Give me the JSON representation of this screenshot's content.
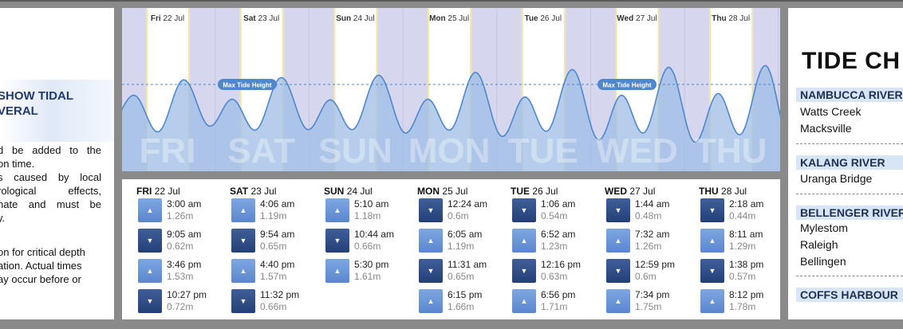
{
  "left_panel": {
    "heading_lines": [
      "SHOW TIDAL",
      "VERAL"
    ],
    "notes": [
      {
        "lines": [
          "d be added to the",
          "on time."
        ],
        "justify": true
      },
      {
        "lines": [
          "s caused by local",
          "rological effects,",
          "nate and must be",
          "y."
        ],
        "justify": true
      },
      {
        "lines": [
          "on for critical depth",
          "ation. Actual times",
          "ay occur before or"
        ],
        "justify": false
      }
    ]
  },
  "chart": {
    "max_tide_label": "Max Tide Height",
    "days": [
      {
        "abbr": "Fri",
        "date": "22 Jul",
        "big": "FRI"
      },
      {
        "abbr": "Sat",
        "date": "23 Jul",
        "big": "SAT"
      },
      {
        "abbr": "Sun",
        "date": "24 Jul",
        "big": "SUN"
      },
      {
        "abbr": "Mon",
        "date": "25 Jul",
        "big": "MON"
      },
      {
        "abbr": "Tue",
        "date": "26 Jul",
        "big": "TUE"
      },
      {
        "abbr": "Wed",
        "date": "27 Jul",
        "big": "WED"
      },
      {
        "abbr": "Thu",
        "date": "28 Jul",
        "big": "THU"
      }
    ]
  },
  "colors": {
    "high_tide": "#6a95d8",
    "low_tide": "#2f4c86",
    "day_band": "#ffffff",
    "night_band": "#d6d7ef",
    "wave_fill": "#9dbde6",
    "wave_line": "#4f87cf",
    "heading": "#223a70",
    "river_band": "#d8e5f6"
  },
  "table": {
    "days": [
      {
        "label": "FRI",
        "date": "22 Jul",
        "tides": [
          {
            "type": "high",
            "icon": "up-arrow-icon",
            "time": "3:00 am",
            "height": "1.26m"
          },
          {
            "type": "low",
            "icon": "down-arrow-icon",
            "time": "9:05 am",
            "height": "0.62m"
          },
          {
            "type": "high",
            "icon": "up-arrow-icon",
            "time": "3:46 pm",
            "height": "1.53m"
          },
          {
            "type": "low",
            "icon": "down-arrow-icon",
            "time": "10:27 pm",
            "height": "0.72m"
          }
        ]
      },
      {
        "label": "SAT",
        "date": "23 Jul",
        "tides": [
          {
            "type": "high",
            "icon": "up-arrow-icon",
            "time": "4:06 am",
            "height": "1.19m"
          },
          {
            "type": "low",
            "icon": "down-arrow-icon",
            "time": "9:54 am",
            "height": "0.65m"
          },
          {
            "type": "high",
            "icon": "up-arrow-icon",
            "time": "4:40 pm",
            "height": "1.57m"
          },
          {
            "type": "low",
            "icon": "down-arrow-icon",
            "time": "11:32 pm",
            "height": "0.66m"
          }
        ]
      },
      {
        "label": "SUN",
        "date": "24 Jul",
        "tides": [
          {
            "type": "high",
            "icon": "up-arrow-icon",
            "time": "5:10 am",
            "height": "1.18m"
          },
          {
            "type": "low",
            "icon": "down-arrow-icon",
            "time": "10:44 am",
            "height": "0.66m"
          },
          {
            "type": "high",
            "icon": "up-arrow-icon",
            "time": "5:30 pm",
            "height": "1.61m"
          }
        ]
      },
      {
        "label": "MON",
        "date": "25 Jul",
        "tides": [
          {
            "type": "low",
            "icon": "down-arrow-icon",
            "time": "12:24 am",
            "height": "0.6m"
          },
          {
            "type": "high",
            "icon": "up-arrow-icon",
            "time": "6:05 am",
            "height": "1.19m"
          },
          {
            "type": "low",
            "icon": "down-arrow-icon",
            "time": "11:31 am",
            "height": "0.65m"
          },
          {
            "type": "high",
            "icon": "up-arrow-icon",
            "time": "6:15 pm",
            "height": "1.66m"
          }
        ]
      },
      {
        "label": "TUE",
        "date": "26 Jul",
        "tides": [
          {
            "type": "low",
            "icon": "down-arrow-icon",
            "time": "1:06 am",
            "height": "0.54m"
          },
          {
            "type": "high",
            "icon": "up-arrow-icon",
            "time": "6:52 am",
            "height": "1.23m"
          },
          {
            "type": "low",
            "icon": "down-arrow-icon",
            "time": "12:16 pm",
            "height": "0.63m"
          },
          {
            "type": "high",
            "icon": "up-arrow-icon",
            "time": "6:56 pm",
            "height": "1.71m"
          }
        ]
      },
      {
        "label": "WED",
        "date": "27 Jul",
        "tides": [
          {
            "type": "low",
            "icon": "down-arrow-icon",
            "time": "1:44 am",
            "height": "0.48m"
          },
          {
            "type": "high",
            "icon": "up-arrow-icon",
            "time": "7:32 am",
            "height": "1.26m"
          },
          {
            "type": "low",
            "icon": "down-arrow-icon",
            "time": "12:59 pm",
            "height": "0.6m"
          },
          {
            "type": "high",
            "icon": "up-arrow-icon",
            "time": "7:34 pm",
            "height": "1.75m"
          }
        ]
      },
      {
        "label": "THU",
        "date": "28 Jul",
        "tides": [
          {
            "type": "low",
            "icon": "down-arrow-icon",
            "time": "2:18 am",
            "height": "0.44m"
          },
          {
            "type": "high",
            "icon": "up-arrow-icon",
            "time": "8:11 am",
            "height": "1.29m"
          },
          {
            "type": "low",
            "icon": "down-arrow-icon",
            "time": "1:38 pm",
            "height": "0.57m"
          },
          {
            "type": "high",
            "icon": "up-arrow-icon",
            "time": "8:12 pm",
            "height": "1.78m"
          }
        ]
      }
    ]
  },
  "right_panel": {
    "title": "TIDE CH",
    "groups": [
      {
        "river": "NAMBUCCA RIVER",
        "locations": [
          "Watts Creek",
          "Macksville"
        ]
      },
      {
        "river": "KALANG RIVER",
        "locations": [
          "Uranga Bridge"
        ]
      },
      {
        "river": "BELLENGER RIVER",
        "locations": [
          "Mylestom",
          "Raleigh",
          "Bellingen"
        ]
      },
      {
        "river": "COFFS HARBOUR",
        "locations": []
      }
    ]
  }
}
